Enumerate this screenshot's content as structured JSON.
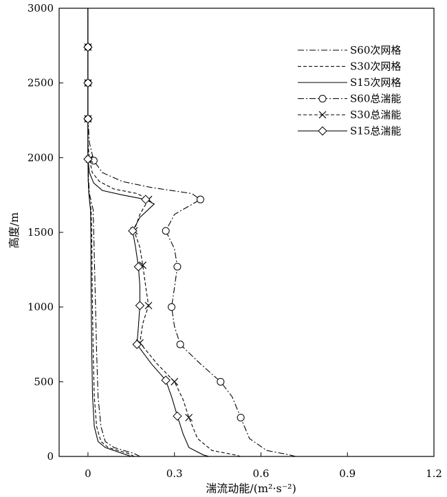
{
  "chart_data": {
    "type": "line",
    "xlabel": "湍流动能/(m²·s⁻²)",
    "ylabel": "高度/m",
    "xlim": [
      -0.1,
      1.2
    ],
    "ylim": [
      0,
      3000
    ],
    "xticks": [
      "0",
      "0.3",
      "0.6",
      "0.9",
      "1.2"
    ],
    "yticks": [
      "0",
      "500",
      "1000",
      "1500",
      "2000",
      "2500",
      "3000"
    ],
    "grid": false,
    "legend_position": "top-right",
    "series": [
      {
        "name": "S60次网格",
        "style": "dash-dot",
        "marker": "none",
        "points": [
          [
            0.18,
            0
          ],
          [
            0.16,
            20
          ],
          [
            0.09,
            60
          ],
          [
            0.06,
            100
          ],
          [
            0.045,
            200
          ],
          [
            0.035,
            400
          ],
          [
            0.03,
            700
          ],
          [
            0.025,
            1100
          ],
          [
            0.02,
            1500
          ],
          [
            0.018,
            1650
          ],
          [
            0.012,
            1700
          ],
          [
            0.005,
            1760
          ],
          [
            0.002,
            1850
          ],
          [
            0,
            2000
          ],
          [
            0,
            3000
          ]
        ]
      },
      {
        "name": "S30次网格",
        "style": "dashed",
        "marker": "none",
        "points": [
          [
            0.16,
            0
          ],
          [
            0.14,
            20
          ],
          [
            0.07,
            60
          ],
          [
            0.045,
            100
          ],
          [
            0.03,
            200
          ],
          [
            0.022,
            400
          ],
          [
            0.018,
            700
          ],
          [
            0.015,
            1100
          ],
          [
            0.013,
            1500
          ],
          [
            0.011,
            1650
          ],
          [
            0.007,
            1700
          ],
          [
            0.003,
            1760
          ],
          [
            0.001,
            1850
          ],
          [
            0,
            2000
          ],
          [
            0,
            3000
          ]
        ]
      },
      {
        "name": "S15次网格",
        "style": "solid",
        "marker": "none",
        "points": [
          [
            0.15,
            0
          ],
          [
            0.12,
            20
          ],
          [
            0.06,
            60
          ],
          [
            0.035,
            100
          ],
          [
            0.022,
            200
          ],
          [
            0.016,
            400
          ],
          [
            0.013,
            700
          ],
          [
            0.011,
            1100
          ],
          [
            0.01,
            1500
          ],
          [
            0.009,
            1650
          ],
          [
            0.006,
            1700
          ],
          [
            0.003,
            1760
          ],
          [
            0.001,
            1850
          ],
          [
            0,
            2000
          ],
          [
            0,
            3000
          ]
        ]
      },
      {
        "name": "S60总湍能",
        "style": "dash-dot",
        "marker": "circle",
        "points": [
          [
            0.72,
            0
          ],
          [
            0.7,
            10
          ],
          [
            0.62,
            40
          ],
          [
            0.56,
            120
          ],
          [
            0.53,
            260
          ],
          [
            0.5,
            400
          ],
          [
            0.46,
            500
          ],
          [
            0.39,
            620
          ],
          [
            0.32,
            750
          ],
          [
            0.3,
            870
          ],
          [
            0.29,
            1000
          ],
          [
            0.3,
            1130
          ],
          [
            0.31,
            1270
          ],
          [
            0.3,
            1390
          ],
          [
            0.27,
            1510
          ],
          [
            0.3,
            1620
          ],
          [
            0.39,
            1720
          ],
          [
            0.36,
            1760
          ],
          [
            0.22,
            1800
          ],
          [
            0.12,
            1840
          ],
          [
            0.05,
            1900
          ],
          [
            0.02,
            1980
          ],
          [
            0.005,
            2100
          ],
          [
            0,
            2260
          ],
          [
            0,
            2500
          ],
          [
            0,
            2740
          ],
          [
            0,
            3000
          ]
        ],
        "marker_points": [
          [
            0.02,
            1980
          ],
          [
            0.39,
            1720
          ],
          [
            0.27,
            1510
          ],
          [
            0.31,
            1270
          ],
          [
            0.29,
            1000
          ],
          [
            0.32,
            750
          ],
          [
            0.46,
            500
          ],
          [
            0.53,
            260
          ],
          [
            0,
            2260
          ],
          [
            0,
            2500
          ],
          [
            0,
            2740
          ]
        ]
      },
      {
        "name": "S30总湍能",
        "style": "dashed",
        "marker": "x",
        "points": [
          [
            0.53,
            0
          ],
          [
            0.51,
            10
          ],
          [
            0.43,
            40
          ],
          [
            0.38,
            120
          ],
          [
            0.35,
            260
          ],
          [
            0.33,
            380
          ],
          [
            0.3,
            500
          ],
          [
            0.24,
            620
          ],
          [
            0.18,
            760
          ],
          [
            0.19,
            890
          ],
          [
            0.21,
            1010
          ],
          [
            0.2,
            1140
          ],
          [
            0.19,
            1280
          ],
          [
            0.18,
            1400
          ],
          [
            0.16,
            1510
          ],
          [
            0.18,
            1620
          ],
          [
            0.21,
            1720
          ],
          [
            0.17,
            1760
          ],
          [
            0.09,
            1790
          ],
          [
            0.04,
            1840
          ],
          [
            0.015,
            1900
          ],
          [
            0.005,
            1990
          ],
          [
            0,
            2100
          ],
          [
            0,
            2260
          ],
          [
            0,
            2500
          ],
          [
            0,
            2740
          ],
          [
            0,
            3000
          ]
        ],
        "marker_points": [
          [
            0.005,
            1990
          ],
          [
            0.21,
            1720
          ],
          [
            0.16,
            1510
          ],
          [
            0.19,
            1280
          ],
          [
            0.21,
            1010
          ],
          [
            0.18,
            760
          ],
          [
            0.3,
            500
          ],
          [
            0.35,
            260
          ],
          [
            0,
            2260
          ],
          [
            0,
            2500
          ],
          [
            0,
            2740
          ]
        ]
      },
      {
        "name": "S15总湍能",
        "style": "solid",
        "marker": "diamond",
        "points": [
          [
            0.42,
            0
          ],
          [
            0.4,
            10
          ],
          [
            0.35,
            60
          ],
          [
            0.33,
            150
          ],
          [
            0.31,
            270
          ],
          [
            0.29,
            400
          ],
          [
            0.27,
            510
          ],
          [
            0.22,
            620
          ],
          [
            0.17,
            750
          ],
          [
            0.175,
            870
          ],
          [
            0.18,
            1010
          ],
          [
            0.18,
            1140
          ],
          [
            0.175,
            1270
          ],
          [
            0.165,
            1400
          ],
          [
            0.155,
            1510
          ],
          [
            0.18,
            1600
          ],
          [
            0.23,
            1690
          ],
          [
            0.2,
            1720
          ],
          [
            0.12,
            1750
          ],
          [
            0.05,
            1780
          ],
          [
            0.02,
            1830
          ],
          [
            0.005,
            1900
          ],
          [
            0,
            1990
          ],
          [
            0,
            2260
          ],
          [
            0,
            2500
          ],
          [
            0,
            2740
          ],
          [
            0,
            3000
          ]
        ],
        "marker_points": [
          [
            0,
            1990
          ],
          [
            0.2,
            1720
          ],
          [
            0.155,
            1510
          ],
          [
            0.175,
            1270
          ],
          [
            0.18,
            1010
          ],
          [
            0.17,
            750
          ],
          [
            0.27,
            510
          ],
          [
            0.31,
            270
          ],
          [
            0,
            2260
          ],
          [
            0,
            2500
          ],
          [
            0,
            2740
          ]
        ]
      }
    ]
  }
}
